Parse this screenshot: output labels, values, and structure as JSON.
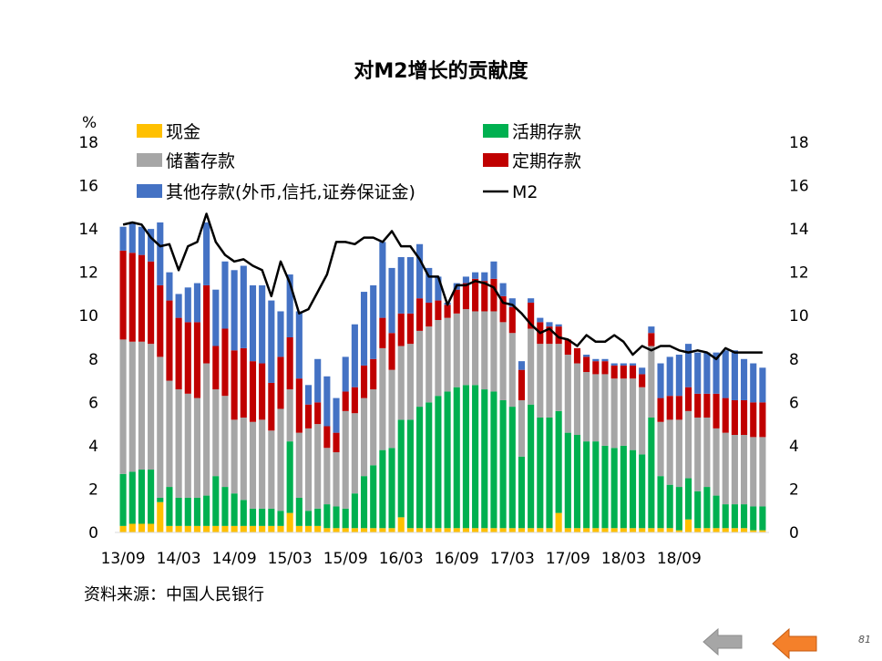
{
  "title": "对M2增长的贡献度",
  "source": "资料来源：中国人民银行",
  "page_number": "81",
  "nav": {
    "prev_icon": "arrow-left-icon-gray",
    "next_icon": "arrow-left-icon-orange"
  },
  "colors": {
    "cash": "#FFC000",
    "demand": "#00B050",
    "savings": "#A6A6A6",
    "time": "#C00000",
    "other": "#4472C4",
    "m2": "#000000",
    "prev_arrow": "#A6A6A6",
    "next_arrow": "#F4802A"
  },
  "chart_data": {
    "type": "bar",
    "stacked": true,
    "title": "对M2增长的贡献度",
    "ylabel": "%",
    "ylim": [
      0,
      18
    ],
    "yticks": [
      0,
      2,
      4,
      6,
      8,
      10,
      12,
      14,
      16,
      18
    ],
    "xtick_labels": [
      "13/09",
      "14/03",
      "14/09",
      "15/03",
      "15/09",
      "16/03",
      "16/09",
      "17/03",
      "17/09",
      "18/03",
      "18/09"
    ],
    "xtick_every": 6,
    "legend": {
      "placement": "top-left",
      "columns": 2
    },
    "series": [
      {
        "name": "现金",
        "type": "bar",
        "values": [
          0.3,
          0.4,
          0.4,
          0.4,
          1.4,
          0.3,
          0.3,
          0.3,
          0.3,
          0.3,
          0.3,
          0.3,
          0.3,
          0.3,
          0.3,
          0.3,
          0.3,
          0.3,
          0.9,
          0.3,
          0.3,
          0.3,
          0.2,
          0.2,
          0.2,
          0.2,
          0.2,
          0.2,
          0.2,
          0.2,
          0.7,
          0.2,
          0.2,
          0.2,
          0.2,
          0.2,
          0.2,
          0.2,
          0.2,
          0.2,
          0.2,
          0.2,
          0.2,
          0.2,
          0.2,
          0.2,
          0.2,
          0.9,
          0.2,
          0.2,
          0.2,
          0.2,
          0.2,
          0.2,
          0.2,
          0.2,
          0.2,
          0.2,
          0.2,
          0.2,
          0.1,
          0.6,
          0.2,
          0.2,
          0.2,
          0.2,
          0.2,
          0.2,
          0.1,
          0.1
        ]
      },
      {
        "name": "活期存款",
        "type": "bar",
        "values": [
          2.4,
          2.4,
          2.5,
          2.5,
          0.2,
          1.8,
          1.3,
          1.3,
          1.3,
          1.4,
          2.3,
          1.8,
          1.5,
          1.2,
          0.8,
          0.8,
          0.8,
          0.7,
          3.3,
          1.3,
          0.7,
          0.8,
          1.1,
          1.0,
          0.9,
          1.6,
          2.4,
          2.9,
          3.6,
          3.7,
          4.5,
          5.0,
          5.6,
          5.8,
          6.1,
          6.3,
          6.5,
          6.6,
          6.6,
          6.4,
          6.3,
          5.9,
          5.6,
          3.3,
          5.7,
          5.1,
          5.1,
          4.7,
          4.4,
          4.3,
          4.0,
          4.0,
          3.8,
          3.7,
          3.8,
          3.6,
          3.4,
          5.1,
          2.4,
          2.0,
          2.0,
          1.9,
          1.7,
          1.9,
          1.5,
          1.1,
          1.1,
          1.1,
          1.1,
          1.1
        ]
      },
      {
        "name": "储蓄存款",
        "type": "bar",
        "values": [
          6.2,
          6.0,
          5.9,
          5.8,
          6.5,
          4.9,
          5.0,
          4.8,
          4.6,
          6.1,
          4.0,
          4.2,
          3.4,
          3.8,
          4.0,
          4.1,
          3.6,
          4.7,
          2.4,
          3.0,
          3.8,
          3.9,
          2.6,
          2.5,
          4.5,
          3.7,
          3.6,
          3.5,
          4.7,
          3.6,
          3.4,
          3.5,
          3.5,
          3.5,
          3.5,
          3.4,
          3.4,
          3.5,
          3.4,
          3.6,
          3.7,
          3.6,
          3.4,
          2.6,
          3.5,
          3.4,
          3.4,
          3.1,
          3.6,
          3.3,
          3.2,
          3.1,
          3.3,
          3.2,
          3.1,
          3.3,
          3.1,
          3.3,
          2.5,
          3.0,
          3.1,
          3.1,
          3.4,
          3.2,
          3.1,
          3.3,
          3.2,
          3.2,
          3.2,
          3.2
        ]
      },
      {
        "name": "定期存款",
        "type": "bar",
        "values": [
          4.1,
          4.1,
          4.0,
          3.8,
          3.3,
          3.7,
          3.3,
          3.3,
          3.5,
          3.6,
          2.0,
          3.1,
          3.2,
          3.2,
          2.8,
          2.6,
          2.2,
          2.4,
          2.4,
          2.5,
          1.1,
          1.0,
          1.0,
          0.9,
          0.9,
          1.2,
          1.5,
          1.4,
          1.4,
          1.7,
          1.5,
          1.4,
          1.5,
          1.1,
          0.9,
          0.6,
          1.1,
          1.2,
          1.5,
          1.4,
          1.5,
          1.2,
          1.2,
          1.4,
          1.2,
          1.0,
          0.8,
          0.8,
          0.7,
          0.7,
          0.7,
          0.6,
          0.6,
          0.6,
          0.6,
          0.6,
          0.6,
          0.6,
          1.1,
          1.1,
          1.1,
          1.1,
          1.1,
          1.1,
          1.6,
          1.6,
          1.6,
          1.6,
          1.6,
          1.6
        ]
      },
      {
        "name": "其他存款(外币,信托,证券保证金)",
        "type": "bar",
        "values": [
          1.1,
          1.4,
          1.3,
          1.5,
          2.9,
          1.3,
          1.1,
          1.6,
          1.8,
          2.9,
          2.6,
          3.1,
          3.7,
          3.8,
          3.5,
          3.6,
          3.8,
          2.1,
          2.9,
          3.1,
          0.9,
          2.0,
          2.3,
          1.6,
          1.6,
          2.9,
          3.4,
          3.4,
          3.5,
          3.0,
          2.6,
          2.6,
          2.5,
          1.6,
          1.1,
          0.1,
          0.3,
          0.3,
          0.3,
          0.4,
          0.8,
          0.6,
          0.4,
          0.4,
          0.2,
          0.2,
          0.2,
          0.1,
          0.0,
          0.0,
          0.1,
          0.1,
          0.1,
          0.1,
          0.1,
          0.1,
          0.3,
          0.3,
          1.6,
          1.8,
          1.9,
          2.0,
          1.9,
          1.9,
          1.9,
          2.2,
          2.3,
          1.9,
          1.8,
          1.6
        ]
      },
      {
        "name": "M2",
        "type": "line",
        "values": [
          14.2,
          14.3,
          14.2,
          13.6,
          13.2,
          13.3,
          12.1,
          13.2,
          13.4,
          14.7,
          13.4,
          12.8,
          12.5,
          12.6,
          12.3,
          12.1,
          10.9,
          12.5,
          11.5,
          10.1,
          10.3,
          11.1,
          11.9,
          13.4,
          13.4,
          13.3,
          13.6,
          13.6,
          13.4,
          13.9,
          13.2,
          13.2,
          12.6,
          11.8,
          11.8,
          10.5,
          11.4,
          11.4,
          11.6,
          11.5,
          11.3,
          10.6,
          10.5,
          10.1,
          9.6,
          9.2,
          9.4,
          9.0,
          8.9,
          8.6,
          9.1,
          8.8,
          8.8,
          9.1,
          8.8,
          8.2,
          8.6,
          8.4,
          8.6,
          8.6,
          8.4,
          8.3,
          8.4,
          8.3,
          8.0,
          8.5,
          8.3,
          8.3,
          8.3,
          8.3
        ]
      }
    ]
  }
}
